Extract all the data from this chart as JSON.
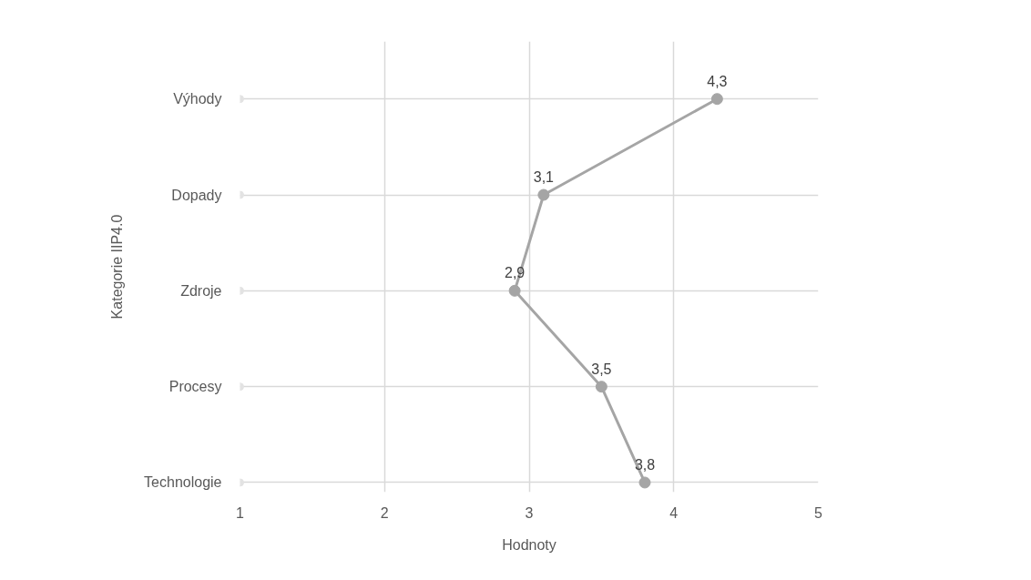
{
  "chart_data": {
    "type": "line",
    "orientation": "horizontal",
    "xlabel": "Hodnoty",
    "ylabel": "Kategorie IIP4.0",
    "categories": [
      "Výhody",
      "Dopady",
      "Zdroje",
      "Procesy",
      "Technologie"
    ],
    "series": [
      {
        "color": "#a5a5a5",
        "values": [
          4.3,
          3.1,
          2.9,
          3.5,
          3.8
        ],
        "marker": "circle",
        "value_labels": [
          "4,3",
          "3,1",
          "2,9",
          "3,5",
          "3,8"
        ]
      },
      {
        "type": "scatter",
        "color": "#e3e3e3",
        "values": [
          1,
          1,
          1,
          1,
          1
        ],
        "marker": "circle"
      }
    ],
    "xlim": [
      1,
      5
    ],
    "xticks": [
      1,
      2,
      3,
      4,
      5
    ],
    "grid": true
  }
}
